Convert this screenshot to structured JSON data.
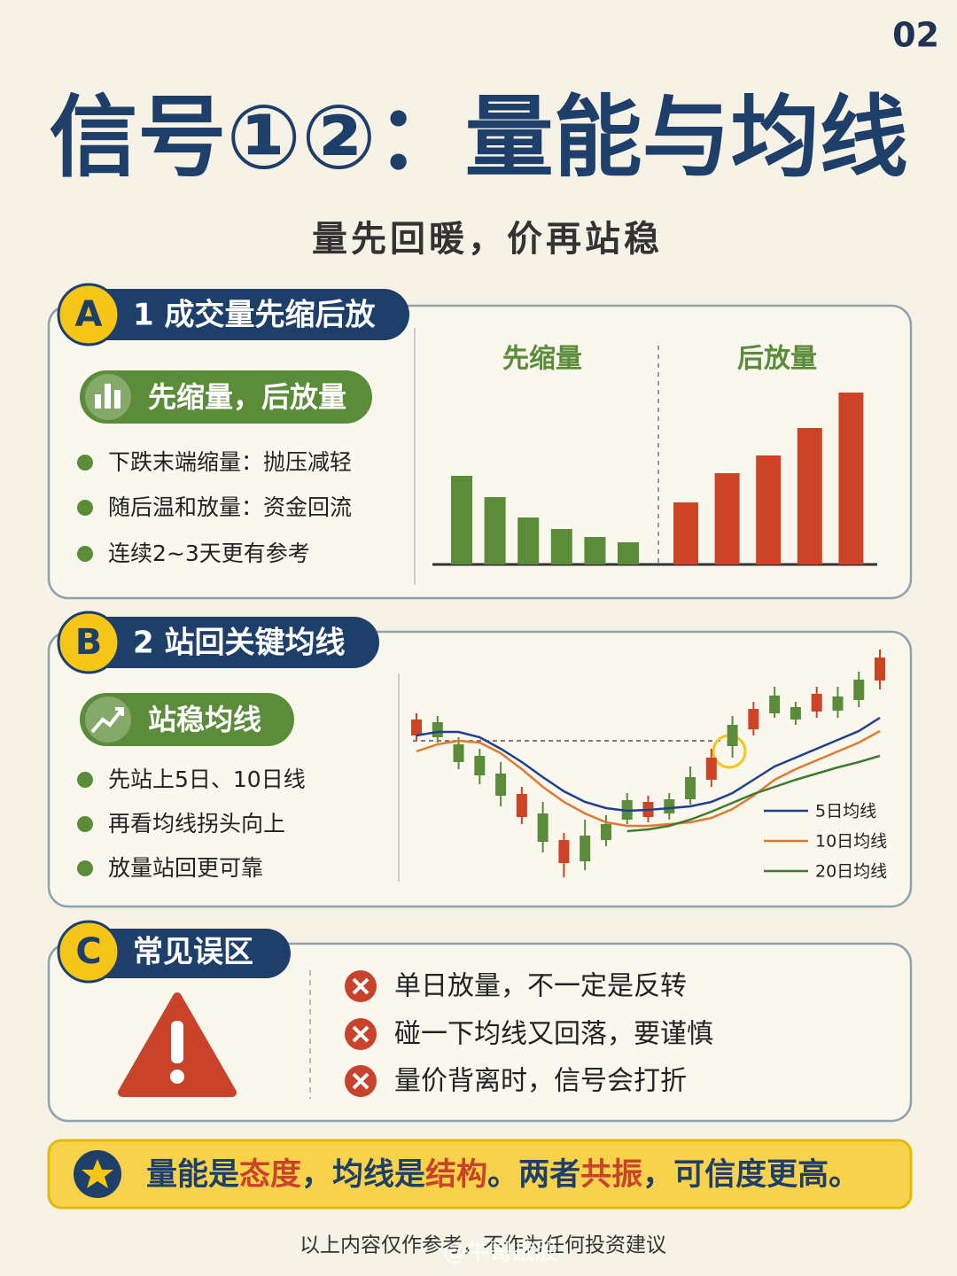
{
  "page_number": "02",
  "header": {
    "title": "信号①②：量能与均线",
    "subtitle": "量先回暖，价再站稳"
  },
  "sections": [
    {
      "badge": "A",
      "title": "1 成交量先缩后放",
      "tag": "先缩量，后放量",
      "bullets": [
        "下跌末端缩量：抛压减轻",
        "随后温和放量：资金回流",
        "连续2~3天更有参考"
      ],
      "chart": {
        "type": "bar",
        "groups": [
          {
            "label": "先缩量",
            "color": "#5b8c3a",
            "values": [
              100,
              76,
              53,
              40,
              31,
              25
            ]
          },
          {
            "label": "后放量",
            "color": "#cc4425",
            "values": [
              70,
              103,
              123,
              154,
              194
            ]
          }
        ]
      }
    },
    {
      "badge": "B",
      "title": "2 站回关键均线",
      "tag": "站稳均线",
      "bullets": [
        "先站上5日、10日线",
        "再看均线拐头向上",
        "放量站回更可靠"
      ],
      "chart": {
        "type": "candlestick",
        "up_color": "#cc4425",
        "down_color": "#5b8c3a",
        "open": [
          170,
          185,
          160,
          147,
          127,
          78,
          82,
          26,
          57,
          70,
          97,
          78,
          98,
          123,
          120,
          182,
          177,
          215,
          202,
          197,
          214,
          233,
          232
        ],
        "close": [
          188,
          168,
          140,
          125,
          102,
          104,
          50,
          52,
          28,
          52,
          75,
          95,
          82,
          98,
          145,
          158,
          200,
          195,
          188,
          217,
          198,
          210,
          258
        ],
        "high": [
          195,
          192,
          168,
          155,
          140,
          112,
          95,
          60,
          75,
          80,
          105,
          102,
          105,
          135,
          155,
          192,
          208,
          225,
          208,
          225,
          225,
          242,
          267
        ],
        "low": [
          165,
          162,
          132,
          115,
          90,
          70,
          38,
          10,
          18,
          45,
          70,
          72,
          75,
          92,
          112,
          145,
          170,
          190,
          182,
          190,
          190,
          202,
          222
        ],
        "series": [
          {
            "name": "5日均线",
            "color": "#1f3f8f",
            "values": [
              170,
              174,
              174,
              168,
              155,
              140,
              123,
              107,
              95,
              88,
              85,
              86,
              88,
              90,
              95,
              105,
              120,
              135,
              145,
              155,
              165,
              175,
              190
            ]
          },
          {
            "name": "10日均线",
            "color": "#e07b2e",
            "values": [
              152,
              160,
              164,
              162,
              150,
              132,
              112,
              95,
              82,
              72,
              68,
              68,
              70,
              72,
              77,
              87,
              102,
              120,
              132,
              142,
              152,
              162,
              175
            ]
          },
          {
            "name": "20日均线",
            "color": "#3f7a2e",
            "values": [
              null,
              null,
              null,
              null,
              null,
              null,
              null,
              null,
              null,
              null,
              62,
              64,
              68,
              75,
              84,
              94,
              104,
              112,
              120,
              127,
              134,
              140,
              147
            ]
          }
        ]
      }
    },
    {
      "badge": "C",
      "title": "常见误区",
      "bullets": [
        "单日放量，不一定是反转",
        "碰一下均线又回落，要谨慎",
        "量价背离时，信号会打折"
      ]
    }
  ],
  "conclusion": [
    {
      "text": "量能是",
      "highlight": false
    },
    {
      "text": "态度",
      "highlight": true
    },
    {
      "text": "，均线是",
      "highlight": false
    },
    {
      "text": "结构",
      "highlight": true
    },
    {
      "text": "。两者",
      "highlight": false
    },
    {
      "text": "共振",
      "highlight": true
    },
    {
      "text": "，可信度更高。",
      "highlight": false
    }
  ],
  "footer": "以上内容仅作参考，不作为任何投资建议",
  "watermark": "@牛哥战股"
}
